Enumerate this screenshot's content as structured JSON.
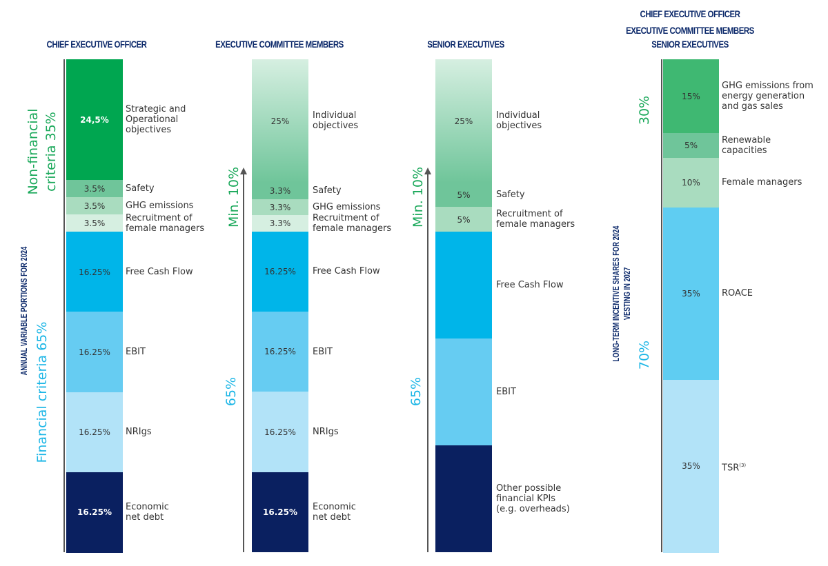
{
  "colors": {
    "dark_green": "#00a650",
    "mid_green": "#6fc59a",
    "light_green": "#a9dcbf",
    "pale_green": "#d6efe1",
    "cyan": "#00b5e9",
    "light_cyan": "#66ccf2",
    "pale_cyan": "#b2e3f8",
    "navy": "#0a2060",
    "green_text": "#1aa85a",
    "blue_text": "#1cb6e6",
    "navy_text": "#0d2a6b"
  },
  "side_labels": {
    "annual": "ANNUAL VARIABLE PORTIONS FOR 2024",
    "long_term": [
      "LONG-TERM INCENTIVE SHARES FOR 2024",
      "VESTING IN 2027"
    ]
  },
  "chart_data": [
    {
      "type": "stacked-bar",
      "title": "CHIEF EXECUTIVE OFFICER",
      "groups": [
        {
          "label": "Non-financial criteria 35%",
          "value": 35
        },
        {
          "label": "Financial criteria 65%",
          "value": 65
        }
      ],
      "segments": [
        {
          "value": 24.5,
          "value_label": "24,5%",
          "label": [
            "Strategic and",
            "Operational",
            "objectives"
          ],
          "group": "non-financial"
        },
        {
          "value": 3.5,
          "value_label": "3.5%",
          "label": [
            "Safety"
          ],
          "group": "non-financial"
        },
        {
          "value": 3.5,
          "value_label": "3.5%",
          "label": [
            "GHG emissions"
          ],
          "group": "non-financial"
        },
        {
          "value": 3.5,
          "value_label": "3.5%",
          "label": [
            "Recruitment of",
            "female managers"
          ],
          "group": "non-financial"
        },
        {
          "value": 16.25,
          "value_label": "16.25%",
          "label": [
            "Free Cash Flow"
          ],
          "group": "financial"
        },
        {
          "value": 16.25,
          "value_label": "16.25%",
          "label": [
            "EBIT"
          ],
          "group": "financial"
        },
        {
          "value": 16.25,
          "value_label": "16.25%",
          "label": [
            "NRIgs"
          ],
          "group": "financial"
        },
        {
          "value": 16.25,
          "value_label": "16.25%",
          "label": [
            "Economic",
            "net debt"
          ],
          "group": "financial"
        }
      ]
    },
    {
      "type": "stacked-bar",
      "title": "EXECUTIVE COMMITTEE MEMBERS",
      "groups": [
        {
          "label": "Min. 10%",
          "value": 35
        },
        {
          "label": "65%",
          "value": 65
        }
      ],
      "segments": [
        {
          "value": 25,
          "value_label": "25%",
          "label": [
            "Individual",
            "objectives"
          ]
        },
        {
          "value": 3.3,
          "value_label": "3.3%",
          "label": [
            "Safety"
          ]
        },
        {
          "value": 3.3,
          "value_label": "3.3%",
          "label": [
            "GHG emissions"
          ]
        },
        {
          "value": 3.3,
          "value_label": "3.3%",
          "label": [
            "Recruitment of",
            "female managers"
          ]
        },
        {
          "value": 16.25,
          "value_label": "16.25%",
          "label": [
            "Free Cash Flow"
          ]
        },
        {
          "value": 16.25,
          "value_label": "16.25%",
          "label": [
            "EBIT"
          ]
        },
        {
          "value": 16.25,
          "value_label": "16.25%",
          "label": [
            "NRIgs"
          ]
        },
        {
          "value": 16.25,
          "value_label": "16.25%",
          "label": [
            "Economic",
            "net debt"
          ]
        }
      ]
    },
    {
      "type": "stacked-bar",
      "title": "SENIOR EXECUTIVES",
      "groups": [
        {
          "label": "Min. 10%",
          "value": 35
        },
        {
          "label": "65%",
          "value": 65
        }
      ],
      "segments": [
        {
          "value": 25,
          "value_label": "25%",
          "label": [
            "Individual",
            "objectives"
          ]
        },
        {
          "value": 5,
          "value_label": "5%",
          "label": [
            "Safety"
          ]
        },
        {
          "value": 5,
          "value_label": "5%",
          "label": [
            "Recruitment of",
            "female managers"
          ]
        },
        {
          "value": 21.67,
          "value_label": "",
          "label": [
            "Free Cash Flow"
          ]
        },
        {
          "value": 21.67,
          "value_label": "",
          "label": [
            "EBIT"
          ]
        },
        {
          "value": 21.67,
          "value_label": "",
          "label": [
            "Other possible",
            "financial KPIs",
            "(e.g. overheads)"
          ]
        }
      ]
    },
    {
      "type": "stacked-bar",
      "title": [
        "CHIEF EXECUTIVE OFFICER",
        "EXECUTIVE COMMITTEE MEMBERS",
        "SENIOR EXECUTIVES"
      ],
      "groups": [
        {
          "label": "30%",
          "value": 30
        },
        {
          "label": "70%",
          "value": 70
        }
      ],
      "segments": [
        {
          "value": 15,
          "value_label": "15%",
          "label": [
            "GHG emissions from",
            "energy generation",
            "and gas sales"
          ]
        },
        {
          "value": 5,
          "value_label": "5%",
          "label": [
            "Renewable",
            "capacities"
          ]
        },
        {
          "value": 10,
          "value_label": "10%",
          "label": [
            "Female managers"
          ]
        },
        {
          "value": 35,
          "value_label": "35%",
          "label": [
            "ROACE"
          ]
        },
        {
          "value": 35,
          "value_label": "35%",
          "label": [
            "TSR"
          ],
          "footnote": "(3)"
        }
      ]
    }
  ]
}
